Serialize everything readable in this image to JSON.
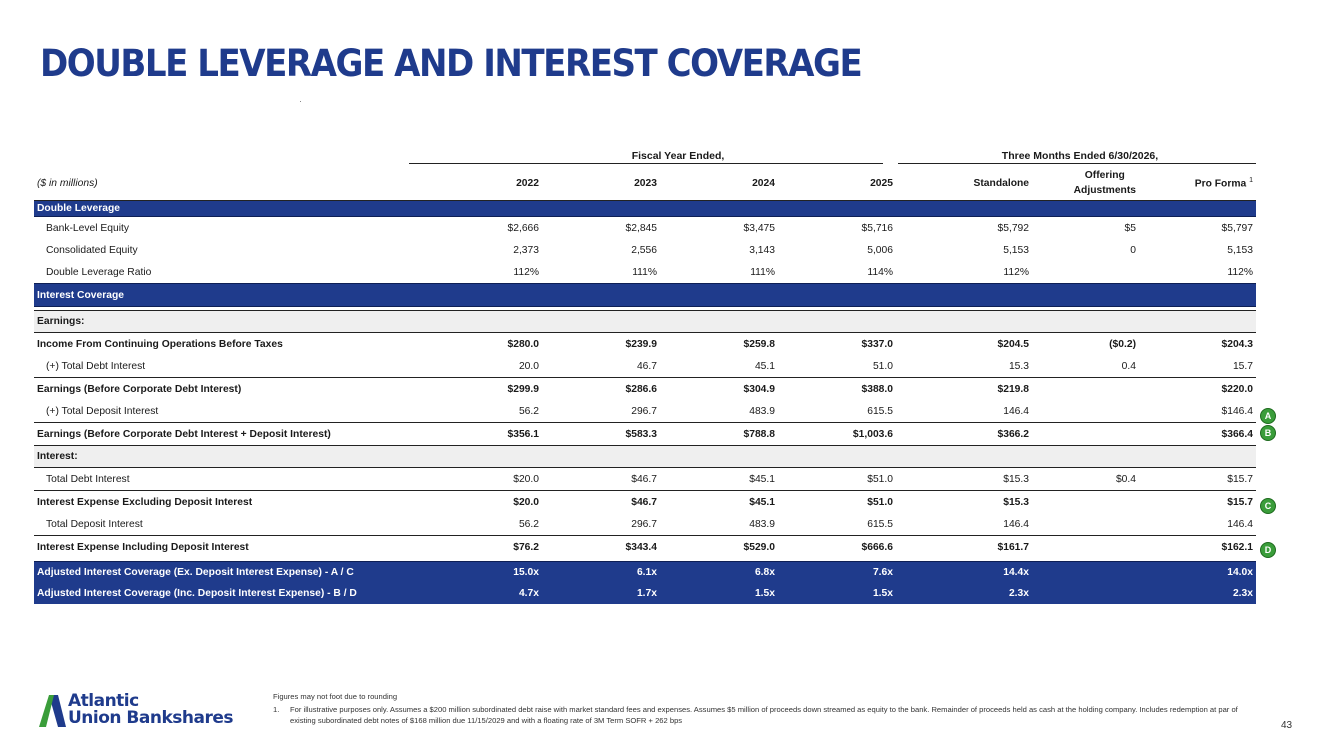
{
  "title": "DOUBLE LEVERAGE AND INTEREST COVERAGE",
  "groups": {
    "fiscal": "Fiscal Year Ended,",
    "three_months": "Three Months Ended 6/30/2026,"
  },
  "header": {
    "units": "($ in millions)",
    "cols": [
      "2022",
      "2023",
      "2024",
      "2025",
      "Standalone"
    ],
    "offering_line1": "Offering",
    "offering_line2": "Adjustments",
    "pro_forma": "Pro Forma",
    "pro_forma_note": "1"
  },
  "sections": {
    "double_leverage": "Double Leverage",
    "interest_coverage": "Interest Coverage",
    "earnings": "Earnings:",
    "interest": "Interest:"
  },
  "rows": {
    "bank_equity": {
      "label": "Bank-Level Equity",
      "values": [
        "$2,666",
        "$2,845",
        "$3,475",
        "$5,716",
        "$5,792",
        "$5",
        "$5,797"
      ]
    },
    "cons_equity": {
      "label": "Consolidated Equity",
      "values": [
        "2,373",
        "2,556",
        "3,143",
        "5,006",
        "5,153",
        "0",
        "5,153"
      ]
    },
    "dl_ratio": {
      "label": "Double Leverage Ratio",
      "values": [
        "112%",
        "111%",
        "111%",
        "114%",
        "112%",
        "",
        "112%"
      ]
    },
    "income_before_tax": {
      "label": "Income From Continuing Operations Before Taxes",
      "values": [
        "$280.0",
        "$239.9",
        "$259.8",
        "$337.0",
        "$204.5",
        "($0.2)",
        "$204.3"
      ]
    },
    "plus_debt_int": {
      "label": "(+) Total Debt Interest",
      "values": [
        "20.0",
        "46.7",
        "45.1",
        "51.0",
        "15.3",
        "0.4",
        "15.7"
      ]
    },
    "earn_before_corp": {
      "label": "Earnings (Before Corporate Debt Interest)",
      "values": [
        "$299.9",
        "$286.6",
        "$304.9",
        "$388.0",
        "$219.8",
        "",
        "$220.0"
      ]
    },
    "plus_deposit_int": {
      "label": "(+) Total Deposit Interest",
      "values": [
        "56.2",
        "296.7",
        "483.9",
        "615.5",
        "146.4",
        "",
        "$146.4"
      ]
    },
    "earn_before_corp_dep": {
      "label": "Earnings (Before Corporate Debt Interest + Deposit Interest)",
      "values": [
        "$356.1",
        "$583.3",
        "$788.8",
        "$1,003.6",
        "$366.2",
        "",
        "$366.4"
      ]
    },
    "total_debt_int": {
      "label": "Total Debt Interest",
      "values": [
        "$20.0",
        "$46.7",
        "$45.1",
        "$51.0",
        "$15.3",
        "$0.4",
        "$15.7"
      ]
    },
    "int_exp_excl": {
      "label": "Interest Expense Excluding Deposit Interest",
      "values": [
        "$20.0",
        "$46.7",
        "$45.1",
        "$51.0",
        "$15.3",
        "",
        "$15.7"
      ]
    },
    "total_dep_int": {
      "label": "Total Deposit Interest",
      "values": [
        "56.2",
        "296.7",
        "483.9",
        "615.5",
        "146.4",
        "",
        "146.4"
      ]
    },
    "int_exp_incl": {
      "label": "Interest Expense Including Deposit Interest",
      "values": [
        "$76.2",
        "$343.4",
        "$529.0",
        "$666.6",
        "$161.7",
        "",
        "$162.1"
      ]
    },
    "adj_cov_ex": {
      "label": "Adjusted Interest Coverage (Ex. Deposit Interest Expense) - A / C",
      "values": [
        "15.0x",
        "6.1x",
        "6.8x",
        "7.6x",
        "14.4x",
        "",
        "14.0x"
      ]
    },
    "adj_cov_inc": {
      "label": "Adjusted Interest Coverage (Inc. Deposit Interest Expense) - B / D",
      "values": [
        "4.7x",
        "1.7x",
        "1.5x",
        "1.5x",
        "2.3x",
        "",
        "2.3x"
      ]
    }
  },
  "markers": {
    "a": "A",
    "b": "B",
    "c": "C",
    "d": "D"
  },
  "colors": {
    "brand_blue": "#1f3b8c",
    "marker_green": "#3a9d3a"
  },
  "footnotes": {
    "rounding": "Figures may not foot due to rounding",
    "note1_num": "1.",
    "note1_text": "For illustrative purposes only. Assumes a $200 million subordinated debt raise with market standard fees and expenses. Assumes $5 million of proceeds down streamed as equity to the bank. Remainder of proceeds held as cash at the holding company. Includes redemption at par of existing subordinated debt notes of $168 million due 11/15/2029 and with a  floating rate of 3M Term SOFR + 262 bps"
  },
  "logo": {
    "line1": "Atlantic",
    "line2": "Union Bankshares"
  },
  "page_number": "43"
}
